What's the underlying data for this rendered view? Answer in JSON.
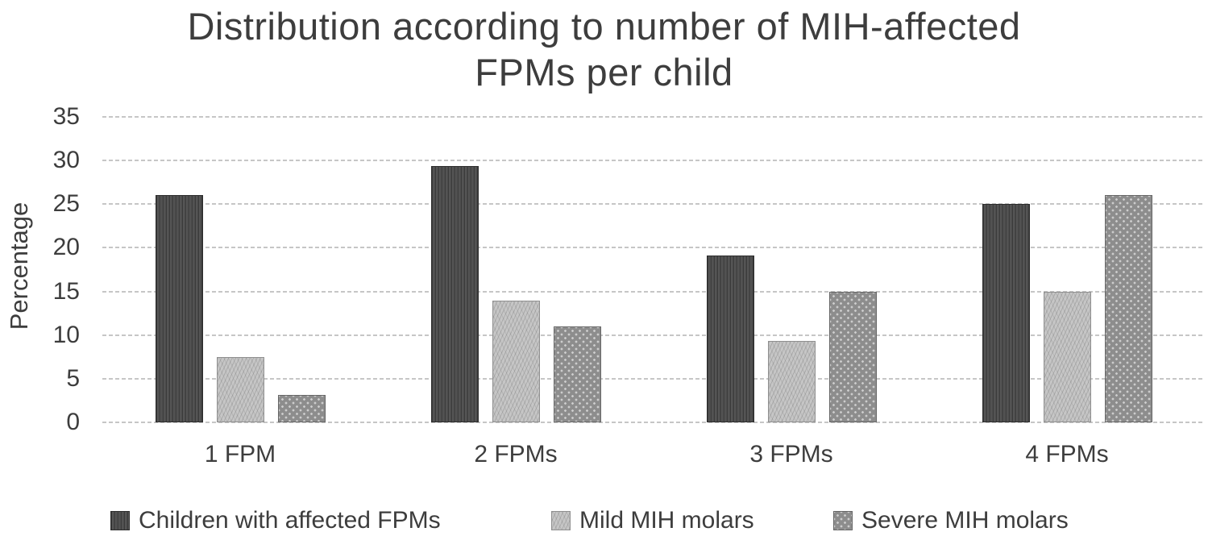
{
  "chart_data": {
    "type": "bar",
    "title": "Distribution according to number of MIH-affected FPMs per child",
    "title_lines": [
      "Distribution according to number of MIH-affected",
      "FPMs per child"
    ],
    "xlabel": "",
    "ylabel": "Percentage",
    "categories": [
      "1 FPM",
      "2 FPMs",
      "3 FPMs",
      "4 FPMs"
    ],
    "series": [
      {
        "name": "Children with affected FPMs",
        "values": [
          26,
          29.4,
          19.1,
          25
        ],
        "color": "#4f4f4f",
        "pattern": "vertical-stripes"
      },
      {
        "name": "Mild MIH molars",
        "values": [
          7.5,
          13.9,
          9.3,
          15
        ],
        "color": "#c6c6c6",
        "pattern": "diagonal-hatch"
      },
      {
        "name": "Severe MIH molars",
        "values": [
          3.1,
          11,
          15,
          26
        ],
        "color": "#8d8d8d",
        "pattern": "dots"
      }
    ],
    "ylim": [
      0,
      35
    ],
    "yticks": [
      0,
      5,
      10,
      15,
      20,
      25,
      30,
      35
    ],
    "grid": true,
    "gridline_style": "dashed",
    "gridline_color": "#c6c6c6",
    "legend_position": "bottom",
    "text_color": "#3d3d3d",
    "background_color": "#ffffff"
  }
}
